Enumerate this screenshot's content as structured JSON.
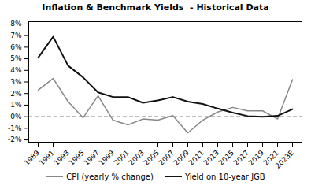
{
  "chart_data": {
    "type": "line",
    "title": "Inflation & Benchmark Yields  - Historical Data",
    "categories": [
      "1989",
      "1991",
      "1993",
      "1995",
      "1997",
      "1999",
      "2001",
      "2003",
      "2005",
      "2007",
      "2009",
      "2011",
      "2013",
      "2015",
      "2017",
      "2019",
      "2021",
      "2023E"
    ],
    "series": [
      {
        "name": "CPI (yearly % change)",
        "color": "#888888",
        "values": [
          2.3,
          3.3,
          1.3,
          -0.1,
          1.8,
          -0.3,
          -0.7,
          -0.2,
          -0.3,
          0.1,
          -1.4,
          -0.3,
          0.4,
          0.8,
          0.5,
          0.5,
          -0.2,
          3.2
        ]
      },
      {
        "name": "Yield on 10-year JGB",
        "color": "#111111",
        "values": [
          5.1,
          6.9,
          4.4,
          3.4,
          2.1,
          1.7,
          1.7,
          1.2,
          1.4,
          1.7,
          1.3,
          1.1,
          0.7,
          0.35,
          0.05,
          0.0,
          0.07,
          0.65
        ]
      }
    ],
    "hline": {
      "y": 0,
      "color": "#555555",
      "line_style": "dashed"
    },
    "ylim": [
      -2.2,
      8.2
    ],
    "yticks": [
      {
        "value": -2,
        "label": "-2%"
      },
      {
        "value": -1,
        "label": "-1%"
      },
      {
        "value": 0,
        "label": "0%"
      },
      {
        "value": 1,
        "label": "1%"
      },
      {
        "value": 2,
        "label": "2%"
      },
      {
        "value": 3,
        "label": "3%"
      },
      {
        "value": 4,
        "label": "4%"
      },
      {
        "value": 5,
        "label": "5%"
      },
      {
        "value": 6,
        "label": "6%"
      },
      {
        "value": 7,
        "label": "7%"
      },
      {
        "value": 8,
        "label": "8%"
      }
    ],
    "grid": false,
    "legend": "bottom"
  }
}
